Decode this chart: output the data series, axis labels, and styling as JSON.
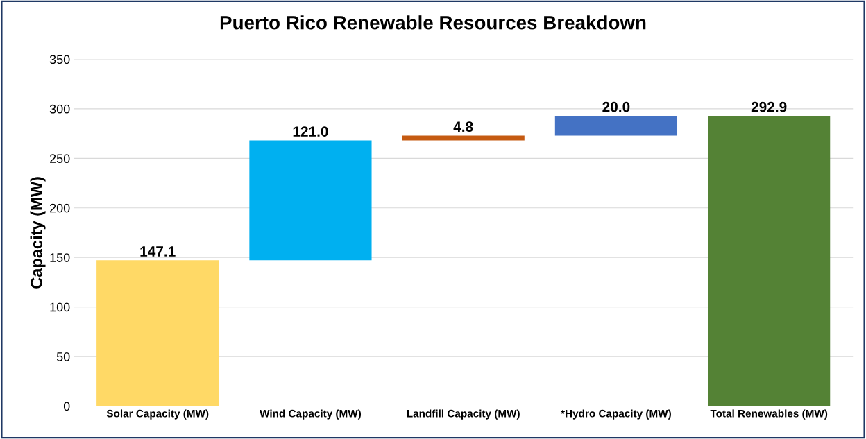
{
  "chart_data": {
    "type": "bar",
    "title": "Puerto Rico Renewable Resources Breakdown",
    "ylabel": "Capacity (MW)",
    "categories": [
      "Solar Capacity (MW)",
      "Wind Capacity (MW)",
      "Landfill Capacity (MW)",
      "*Hydro Capacity (MW)",
      "Total Renewables (MW)"
    ],
    "values": [
      147.1,
      121.0,
      4.8,
      20.0,
      292.9
    ],
    "base": [
      0,
      147.1,
      268.1,
      272.9,
      0
    ],
    "colors": [
      "#ffd966",
      "#00b0f0",
      "#c55a11",
      "#4472c4",
      "#548235"
    ],
    "value_labels": [
      "147.1",
      "121.0",
      "4.8",
      "20.0",
      "292.9"
    ],
    "ylim": [
      0,
      350
    ],
    "yticks": [
      0,
      50,
      100,
      150,
      200,
      250,
      300,
      350
    ],
    "grid": "y"
  }
}
